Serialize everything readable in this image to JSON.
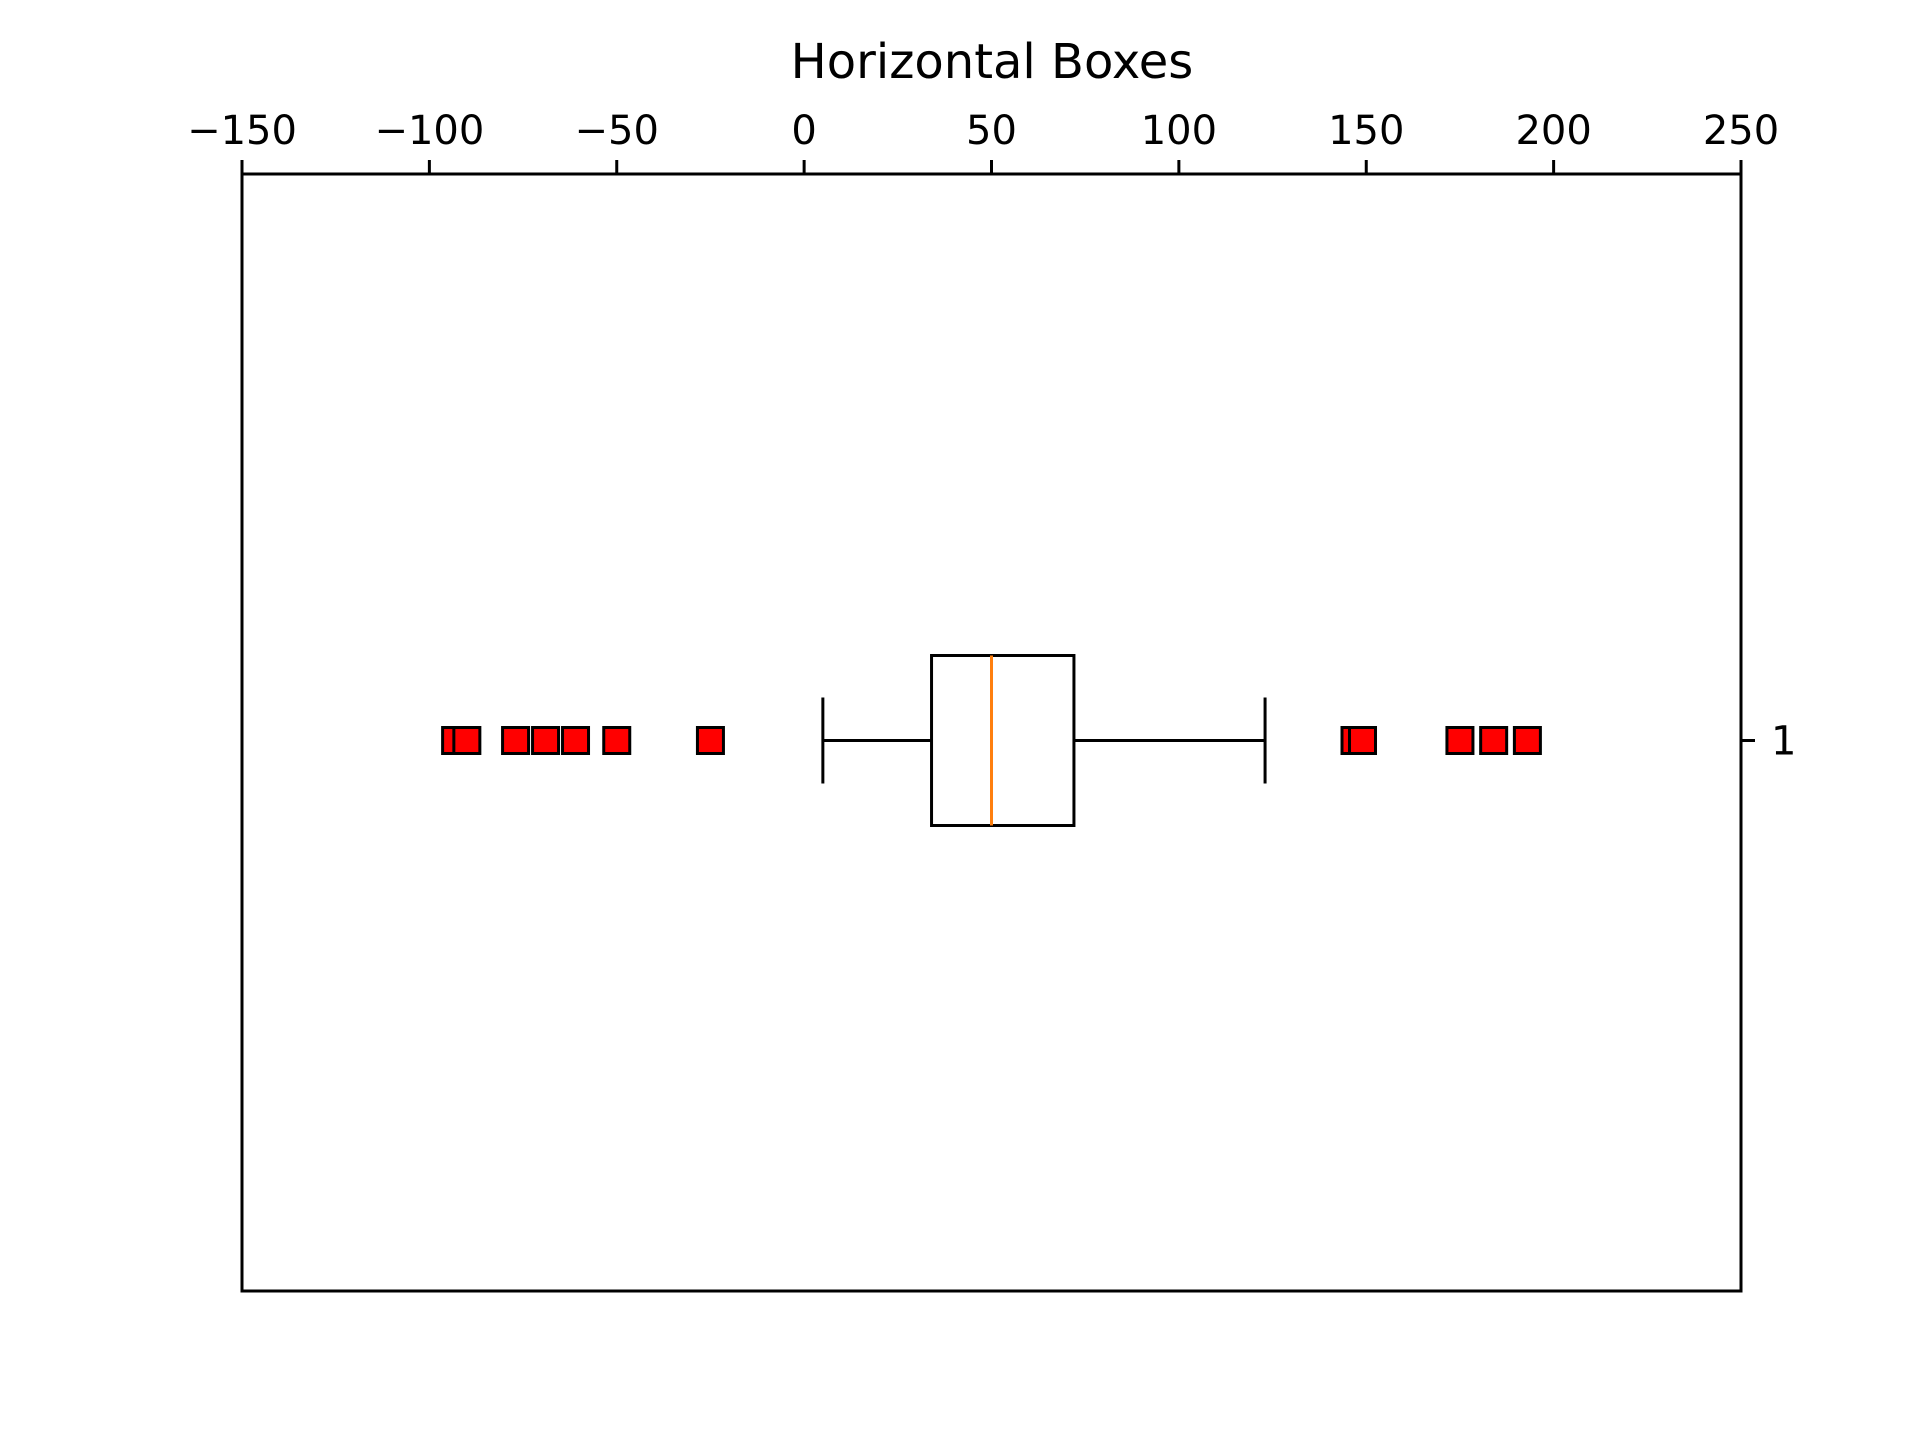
{
  "chart_data": {
    "type": "boxplot",
    "orientation": "horizontal",
    "title": "Horizontal Boxes",
    "xlabel": "",
    "ylabel": "",
    "xlim": [
      -150,
      250
    ],
    "x_ticks": [
      -150,
      -100,
      -50,
      0,
      50,
      100,
      150,
      200,
      250
    ],
    "x_tick_labels": [
      "−150",
      "−100",
      "−50",
      "0",
      "50",
      "100",
      "150",
      "200",
      "250"
    ],
    "x_axis_position": "top",
    "y_axis_position": "right",
    "y_ticks": [
      1
    ],
    "y_tick_labels": [
      "1"
    ],
    "grid": false,
    "boxes": [
      {
        "position": 1,
        "whisker_low": 5,
        "q1": 34,
        "median": 50,
        "q3": 72,
        "whisker_high": 123,
        "outliers": [
          -93,
          -90,
          -77,
          -69,
          -61,
          -50,
          -25,
          147,
          149,
          175,
          184,
          193
        ]
      }
    ],
    "colors": {
      "box": "#000000",
      "median": "#ff7f0e",
      "outlier_fill": "#ff0000",
      "outlier_edge": "#000000"
    },
    "outlier_marker": "square"
  }
}
